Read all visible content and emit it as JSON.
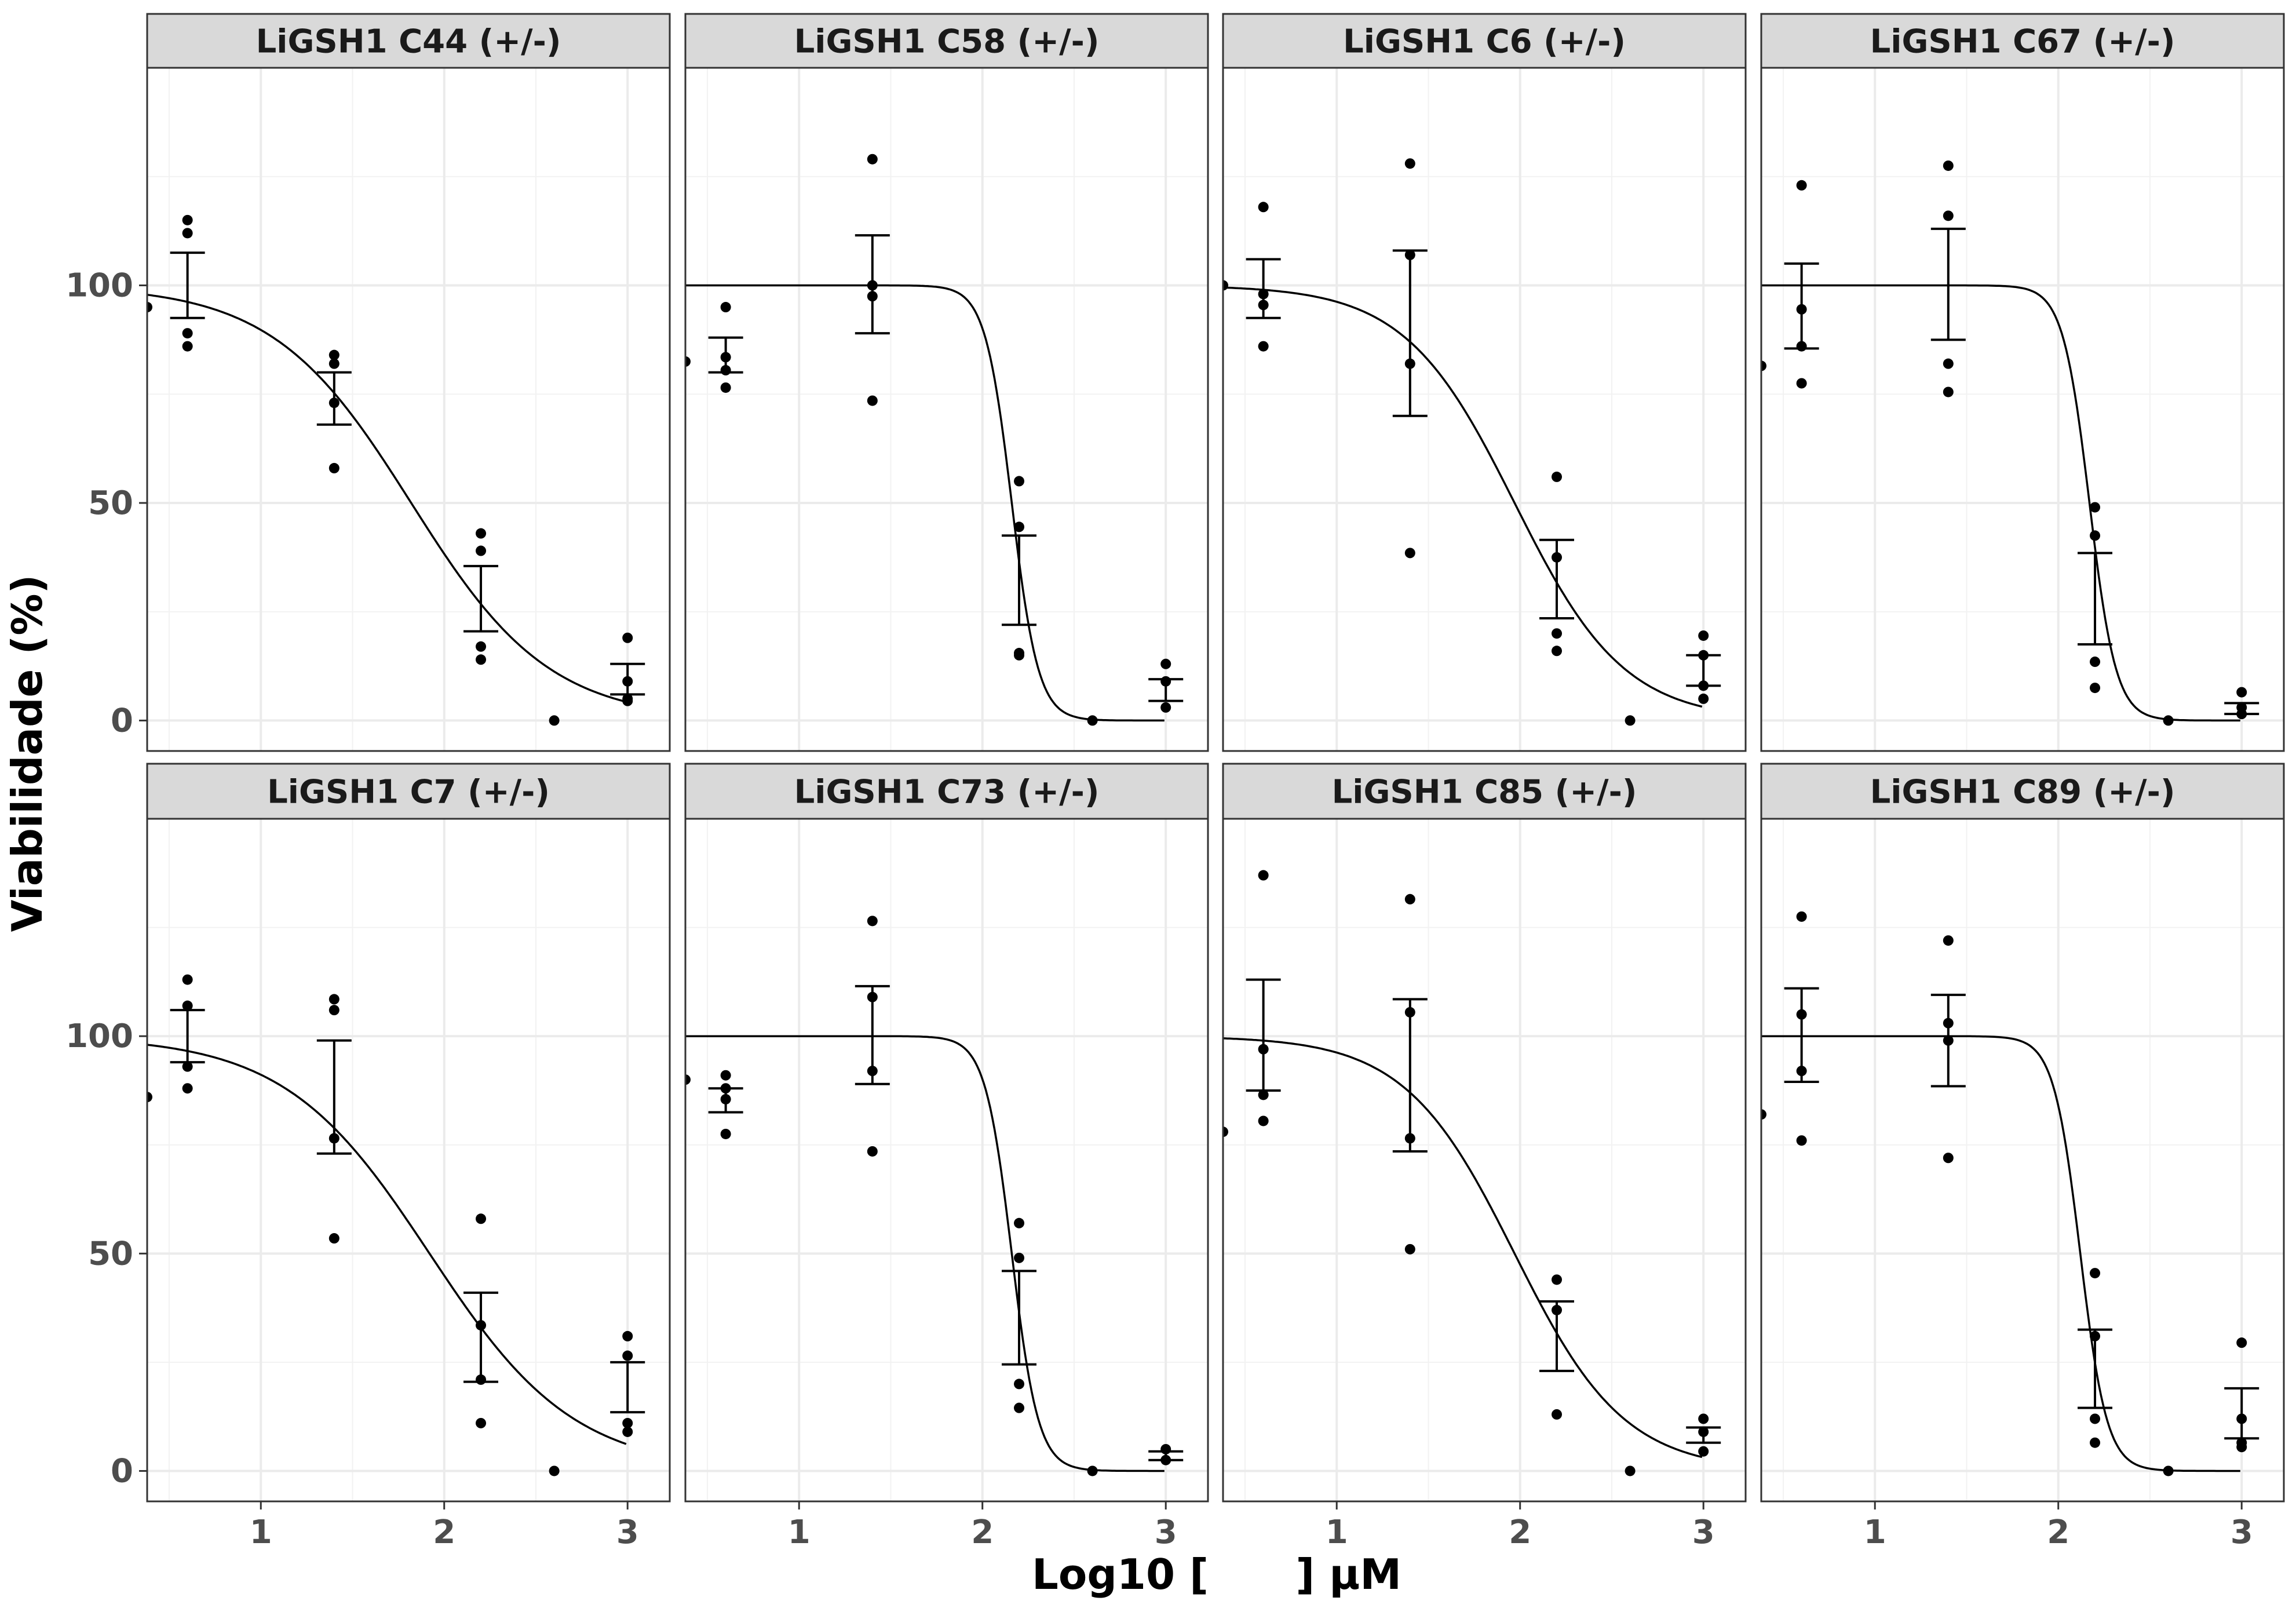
{
  "figure": {
    "ylabel": "Viabilidade (%)",
    "xlabel": "Log10 [      ] µM",
    "x_ticks": [
      1,
      2,
      3
    ],
    "y_ticks": [
      0,
      50,
      100
    ],
    "colors": {
      "strip_bg": "#d9d9d9",
      "grid": "#ebebeb",
      "ink": "#000000",
      "tick_text": "#4d4d4d"
    }
  },
  "chart_data": [
    {
      "type": "scatter",
      "title": "LiGSH1 C44 (+/-)",
      "xlim": [
        0.38,
        3.23
      ],
      "ylim": [
        -7,
        150
      ],
      "points": [
        [
          0.38,
          95
        ],
        [
          0.6,
          115
        ],
        [
          0.6,
          112
        ],
        [
          0.6,
          89
        ],
        [
          0.6,
          86
        ],
        [
          1.4,
          84
        ],
        [
          1.4,
          82
        ],
        [
          1.4,
          73
        ],
        [
          1.4,
          58
        ],
        [
          2.2,
          43
        ],
        [
          2.2,
          39
        ],
        [
          2.2,
          17
        ],
        [
          2.2,
          14
        ],
        [
          2.6,
          0
        ],
        [
          3,
          19
        ],
        [
          3,
          9
        ],
        [
          3,
          5
        ],
        [
          3,
          4.5
        ]
      ],
      "errorbars": [
        {
          "x": 0.6,
          "ymin": 92.5,
          "ymax": 107.5
        },
        {
          "x": 1.4,
          "ymin": 68,
          "ymax": 80
        },
        {
          "x": 2.2,
          "ymin": 20.5,
          "ymax": 35.5
        },
        {
          "x": 3,
          "ymin": 6,
          "ymax": 13
        }
      ],
      "curve": {
        "top": 100,
        "bottom": 0,
        "ec50_log": 1.82,
        "hill": 1.15
      }
    },
    {
      "type": "scatter",
      "title": "LiGSH1 C58 (+/-)",
      "xlim": [
        0.38,
        3.23
      ],
      "ylim": [
        -7,
        150
      ],
      "points": [
        [
          0.38,
          82.5
        ],
        [
          0.6,
          95
        ],
        [
          0.6,
          83.5
        ],
        [
          0.6,
          80.5
        ],
        [
          0.6,
          76.5
        ],
        [
          1.4,
          129
        ],
        [
          1.4,
          100
        ],
        [
          1.4,
          97.5
        ],
        [
          1.4,
          73.5
        ],
        [
          2.2,
          55
        ],
        [
          2.2,
          44.5
        ],
        [
          2.2,
          15.5
        ],
        [
          2.2,
          15
        ],
        [
          2.6,
          0
        ],
        [
          3,
          13
        ],
        [
          3,
          9
        ],
        [
          3,
          3
        ]
      ],
      "errorbars": [
        {
          "x": 0.6,
          "ymin": 80,
          "ymax": 88
        },
        {
          "x": 1.4,
          "ymin": 89,
          "ymax": 111.5
        },
        {
          "x": 2.2,
          "ymin": 22,
          "ymax": 42.5
        },
        {
          "x": 3,
          "ymin": 4.5,
          "ymax": 9.5
        }
      ],
      "curve": {
        "top": 100,
        "bottom": 0,
        "ec50_log": 2.16,
        "hill": 6
      }
    },
    {
      "type": "scatter",
      "title": "LiGSH1 C6 (+/-)",
      "xlim": [
        0.38,
        3.23
      ],
      "ylim": [
        -7,
        150
      ],
      "points": [
        [
          0.38,
          100
        ],
        [
          0.6,
          118
        ],
        [
          0.6,
          98
        ],
        [
          0.6,
          95.5
        ],
        [
          0.6,
          86
        ],
        [
          1.4,
          128
        ],
        [
          1.4,
          107
        ],
        [
          1.4,
          82
        ],
        [
          1.4,
          38.5
        ],
        [
          2.2,
          56
        ],
        [
          2.2,
          37.5
        ],
        [
          2.2,
          20
        ],
        [
          2.2,
          16
        ],
        [
          2.6,
          0
        ],
        [
          3,
          19.5
        ],
        [
          3,
          15
        ],
        [
          3,
          8
        ],
        [
          3,
          5
        ]
      ],
      "errorbars": [
        {
          "x": 0.6,
          "ymin": 92.5,
          "ymax": 106
        },
        {
          "x": 1.4,
          "ymin": 70,
          "ymax": 108
        },
        {
          "x": 2.2,
          "ymin": 23.5,
          "ymax": 41.5
        },
        {
          "x": 3,
          "ymin": 8,
          "ymax": 15
        }
      ],
      "curve": {
        "top": 100,
        "bottom": 0,
        "ec50_log": 1.97,
        "hill": 1.45
      }
    },
    {
      "type": "scatter",
      "title": "LiGSH1 C67 (+/-)",
      "xlim": [
        0.38,
        3.23
      ],
      "ylim": [
        -7,
        150
      ],
      "points": [
        [
          0.38,
          81.5
        ],
        [
          0.6,
          123
        ],
        [
          0.6,
          94.5
        ],
        [
          0.6,
          86
        ],
        [
          0.6,
          77.5
        ],
        [
          1.4,
          127.5
        ],
        [
          1.4,
          116
        ],
        [
          1.4,
          82
        ],
        [
          1.4,
          75.5
        ],
        [
          2.2,
          49
        ],
        [
          2.2,
          42.5
        ],
        [
          2.2,
          13.5
        ],
        [
          2.2,
          7.5
        ],
        [
          2.6,
          0
        ],
        [
          3,
          6.5
        ],
        [
          3,
          3
        ],
        [
          3,
          1.5
        ]
      ],
      "errorbars": [
        {
          "x": 0.6,
          "ymin": 85.5,
          "ymax": 105
        },
        {
          "x": 1.4,
          "ymin": 87.5,
          "ymax": 113
        },
        {
          "x": 2.2,
          "ymin": 17.5,
          "ymax": 38.5
        },
        {
          "x": 3,
          "ymin": 1.5,
          "ymax": 4
        }
      ],
      "curve": {
        "top": 100,
        "bottom": 0,
        "ec50_log": 2.17,
        "hill": 6
      }
    },
    {
      "type": "scatter",
      "title": "LiGSH1 C7 (+/-)",
      "xlim": [
        0.38,
        3.23
      ],
      "ylim": [
        -7,
        150
      ],
      "points": [
        [
          0.38,
          86
        ],
        [
          0.6,
          113
        ],
        [
          0.6,
          107
        ],
        [
          0.6,
          93
        ],
        [
          0.6,
          88
        ],
        [
          1.4,
          108.5
        ],
        [
          1.4,
          106
        ],
        [
          1.4,
          76.5
        ],
        [
          1.4,
          53.5
        ],
        [
          2.2,
          58
        ],
        [
          2.2,
          33.5
        ],
        [
          2.2,
          21
        ],
        [
          2.2,
          11
        ],
        [
          2.6,
          0
        ],
        [
          3,
          31
        ],
        [
          3,
          26.5
        ],
        [
          3,
          11
        ],
        [
          3,
          9
        ]
      ],
      "errorbars": [
        {
          "x": 0.6,
          "ymin": 94,
          "ymax": 106
        },
        {
          "x": 1.4,
          "ymin": 73,
          "ymax": 99
        },
        {
          "x": 2.2,
          "ymin": 20.5,
          "ymax": 41
        },
        {
          "x": 3,
          "ymin": 13.5,
          "ymax": 25
        }
      ],
      "curve": {
        "top": 100,
        "bottom": 0,
        "ec50_log": 1.92,
        "hill": 1.1
      }
    },
    {
      "type": "scatter",
      "title": "LiGSH1 C73 (+/-)",
      "xlim": [
        0.38,
        3.23
      ],
      "ylim": [
        -7,
        150
      ],
      "points": [
        [
          0.38,
          90
        ],
        [
          0.6,
          91
        ],
        [
          0.6,
          88
        ],
        [
          0.6,
          85.5
        ],
        [
          0.6,
          77.5
        ],
        [
          1.4,
          126.5
        ],
        [
          1.4,
          109
        ],
        [
          1.4,
          92
        ],
        [
          1.4,
          73.5
        ],
        [
          2.2,
          57
        ],
        [
          2.2,
          49
        ],
        [
          2.2,
          20
        ],
        [
          2.2,
          14.5
        ],
        [
          2.6,
          0
        ],
        [
          3,
          5
        ],
        [
          3,
          2.5
        ]
      ],
      "errorbars": [
        {
          "x": 0.6,
          "ymin": 82.5,
          "ymax": 88
        },
        {
          "x": 1.4,
          "ymin": 89,
          "ymax": 111.5
        },
        {
          "x": 2.2,
          "ymin": 24.5,
          "ymax": 46
        },
        {
          "x": 3,
          "ymin": 2.5,
          "ymax": 4.5
        }
      ],
      "curve": {
        "top": 100,
        "bottom": 0,
        "ec50_log": 2.16,
        "hill": 6
      }
    },
    {
      "type": "scatter",
      "title": "LiGSH1 C85 (+/-)",
      "xlim": [
        0.38,
        3.23
      ],
      "ylim": [
        -7,
        150
      ],
      "points": [
        [
          0.38,
          78
        ],
        [
          0.6,
          137
        ],
        [
          0.6,
          97
        ],
        [
          0.6,
          86.5
        ],
        [
          0.6,
          80.5
        ],
        [
          1.4,
          131.5
        ],
        [
          1.4,
          105.5
        ],
        [
          1.4,
          76.5
        ],
        [
          1.4,
          51
        ],
        [
          2.2,
          44
        ],
        [
          2.2,
          37
        ],
        [
          2.2,
          13
        ],
        [
          2.6,
          0
        ],
        [
          3,
          12
        ],
        [
          3,
          9
        ],
        [
          3,
          4.5
        ]
      ],
      "errorbars": [
        {
          "x": 0.6,
          "ymin": 87.5,
          "ymax": 113
        },
        {
          "x": 1.4,
          "ymin": 73.5,
          "ymax": 108.5
        },
        {
          "x": 2.2,
          "ymin": 23,
          "ymax": 39
        },
        {
          "x": 3,
          "ymin": 6.5,
          "ymax": 10
        }
      ],
      "curve": {
        "top": 100,
        "bottom": 0,
        "ec50_log": 1.97,
        "hill": 1.45
      }
    },
    {
      "type": "scatter",
      "title": "LiGSH1 C89 (+/-)",
      "xlim": [
        0.38,
        3.23
      ],
      "ylim": [
        -7,
        150
      ],
      "points": [
        [
          0.38,
          82
        ],
        [
          0.6,
          127.5
        ],
        [
          0.6,
          105
        ],
        [
          0.6,
          92
        ],
        [
          0.6,
          76
        ],
        [
          1.4,
          122
        ],
        [
          1.4,
          103
        ],
        [
          1.4,
          99
        ],
        [
          1.4,
          72
        ],
        [
          2.2,
          45.5
        ],
        [
          2.2,
          31
        ],
        [
          2.2,
          12
        ],
        [
          2.2,
          6.5
        ],
        [
          2.6,
          0
        ],
        [
          3,
          29.5
        ],
        [
          3,
          12
        ],
        [
          3,
          6.5
        ],
        [
          3,
          5.5
        ]
      ],
      "errorbars": [
        {
          "x": 0.6,
          "ymin": 89.5,
          "ymax": 111
        },
        {
          "x": 1.4,
          "ymin": 88.5,
          "ymax": 109.5
        },
        {
          "x": 2.2,
          "ymin": 14.5,
          "ymax": 32.5
        },
        {
          "x": 3,
          "ymin": 7.5,
          "ymax": 19
        }
      ],
      "curve": {
        "top": 100,
        "bottom": 0,
        "ec50_log": 2.12,
        "hill": 6
      }
    }
  ]
}
